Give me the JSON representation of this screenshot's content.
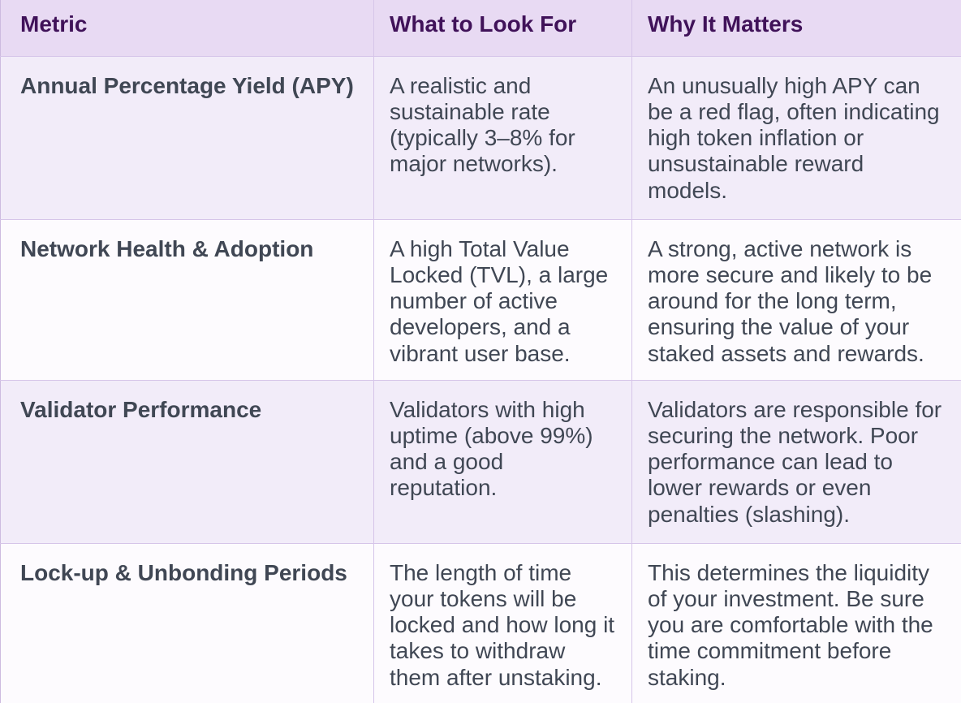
{
  "table": {
    "columns": [
      {
        "label": "Metric"
      },
      {
        "label": "What to Look For"
      },
      {
        "label": "Why It Matters"
      }
    ],
    "rows": [
      {
        "metric": "Annual Percentage Yield (APY)",
        "what": "A realistic and sustainable rate (typically 3–8% for major networks).",
        "why": "An unusually high APY can be a red flag, often indicating high token inflation or unsustainable reward models."
      },
      {
        "metric": "Network Health & Adoption",
        "what": "A high Total Value Locked (TVL), a large number of active developers, and a vibrant user base.",
        "why": "A strong, active network is more secure and likely to be around for the long term, ensuring the value of your staked assets and rewards."
      },
      {
        "metric": "Validator Performance",
        "what": "Validators with high uptime (above 99%) and a good reputation.",
        "why": "Validators are responsible for securing the network. Poor performance can lead to lower rewards or even penalties (slashing)."
      },
      {
        "metric": "Lock-up & Unbonding Periods",
        "what": "The length of time your tokens will be locked and how long it takes to withdraw them after unstaking.",
        "why": "This determines the liquidity of your investment. Be sure you are comfortable with the time commitment before staking."
      }
    ]
  },
  "colors": {
    "header_bg": "#e8daf3",
    "header_text": "#401259",
    "row_odd_bg": "#f2ecf9",
    "row_even_bg": "#fdfbfe",
    "body_text": "#404754",
    "border": "#d6c5e9",
    "border_edge": "#cdbbe0"
  }
}
